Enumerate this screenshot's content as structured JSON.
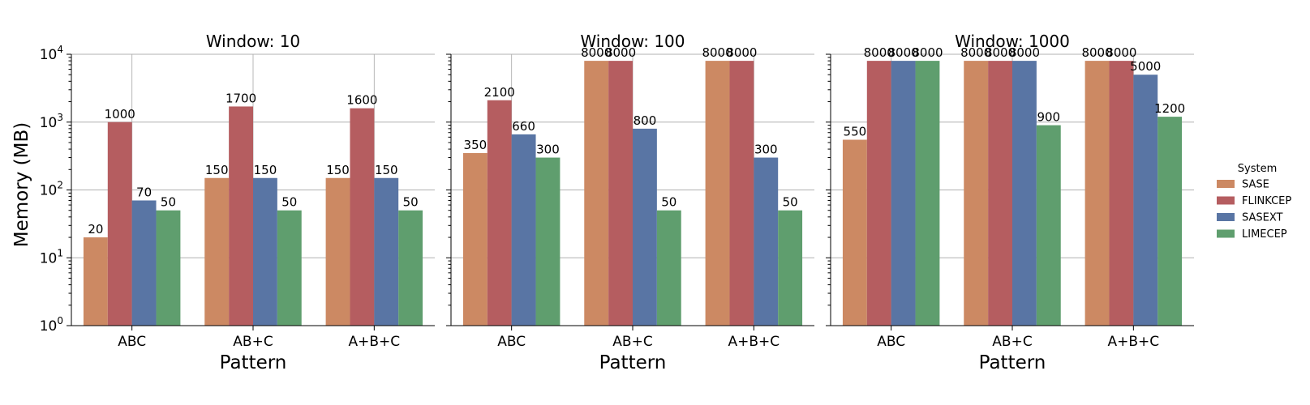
{
  "chart_data": {
    "type": "bar",
    "ylabel": "Memory (MB)",
    "xlabel": "Pattern",
    "yscale": "log",
    "ylim": [
      1,
      10000
    ],
    "yticks": [
      {
        "value": 1,
        "base": "10",
        "exp": "0"
      },
      {
        "value": 10,
        "base": "10",
        "exp": "1"
      },
      {
        "value": 100,
        "base": "10",
        "exp": "2"
      },
      {
        "value": 1000,
        "base": "10",
        "exp": "3"
      },
      {
        "value": 10000,
        "base": "10",
        "exp": "4"
      }
    ],
    "grid": true,
    "categories": [
      "ABC",
      "AB+C",
      "A+B+C"
    ],
    "legend": {
      "title": "System",
      "position": "right",
      "entries": [
        {
          "name": "SASE",
          "color": "#cc8963"
        },
        {
          "name": "FLINKCEP",
          "color": "#b55d60"
        },
        {
          "name": "SASEXT",
          "color": "#5975a4"
        },
        {
          "name": "LIMECEP",
          "color": "#5f9e6e"
        }
      ]
    },
    "panels": [
      {
        "title": "Window: 10",
        "series": [
          {
            "name": "SASE",
            "values": [
              20,
              150,
              150
            ]
          },
          {
            "name": "FLINKCEP",
            "values": [
              1000,
              1700,
              1600
            ]
          },
          {
            "name": "SASEXT",
            "values": [
              70,
              150,
              150
            ]
          },
          {
            "name": "LIMECEP",
            "values": [
              50,
              50,
              50
            ]
          }
        ]
      },
      {
        "title": "Window: 100",
        "series": [
          {
            "name": "SASE",
            "values": [
              350,
              8000,
              8000
            ]
          },
          {
            "name": "FLINKCEP",
            "values": [
              2100,
              8000,
              8000
            ]
          },
          {
            "name": "SASEXT",
            "values": [
              660,
              800,
              300
            ]
          },
          {
            "name": "LIMECEP",
            "values": [
              300,
              50,
              50
            ]
          }
        ]
      },
      {
        "title": "Window: 1000",
        "series": [
          {
            "name": "SASE",
            "values": [
              550,
              8000,
              8000
            ]
          },
          {
            "name": "FLINKCEP",
            "values": [
              8000,
              8000,
              8000
            ]
          },
          {
            "name": "SASEXT",
            "values": [
              8000,
              8000,
              5000
            ]
          },
          {
            "name": "LIMECEP",
            "values": [
              8000,
              900,
              1200
            ]
          }
        ]
      }
    ]
  }
}
